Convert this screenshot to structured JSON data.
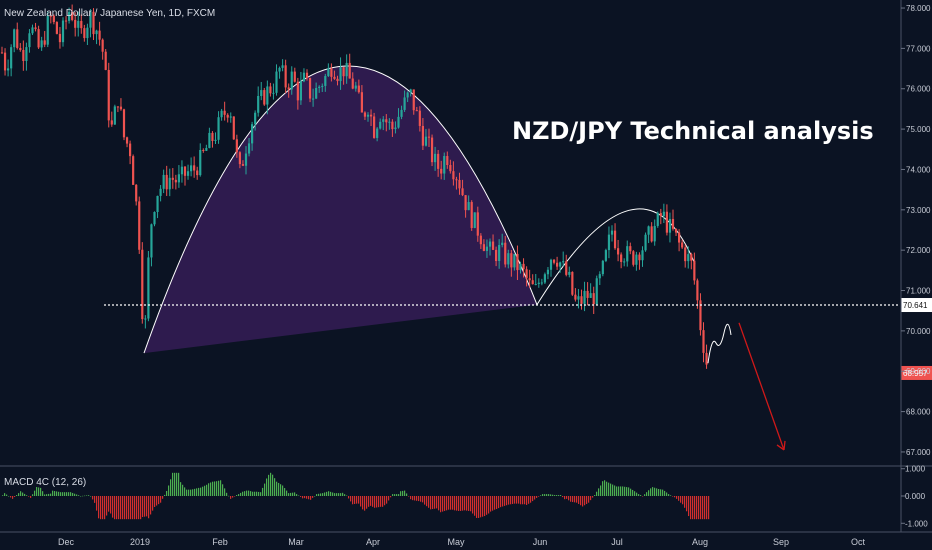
{
  "chart_data": {
    "type": "candlestick",
    "symbol_title": "New Zealand Dollar / Japanese Yen, 1D, FXCM",
    "headline": "NZD/JPY Technical analysis",
    "indicator_label": "MACD 4C (12, 26)",
    "price_axis": {
      "ticks": [
        "78.000",
        "77.000",
        "76.000",
        "75.000",
        "74.000",
        "73.000",
        "72.000",
        "71.000",
        "70.000",
        "69.000",
        "68.000",
        "67.000"
      ],
      "tick_values": [
        78,
        77,
        76,
        75,
        74,
        73,
        72,
        71,
        70,
        69,
        68,
        67
      ],
      "ylim": [
        66.85,
        78.1
      ]
    },
    "macd_axis": {
      "ticks": [
        "1.000",
        "0.000",
        "-1.000"
      ],
      "tick_values": [
        1,
        0,
        -1
      ],
      "ylim": [
        -1.1,
        1.1
      ]
    },
    "time_axis": [
      "Dec",
      "2019",
      "Feb",
      "Mar",
      "Apr",
      "May",
      "Jun",
      "Jul",
      "Aug",
      "Sep",
      "Oct"
    ],
    "support_level": {
      "value": 70.641,
      "label": "70.641"
    },
    "last_price": {
      "value": 68.957,
      "label": "68.957"
    },
    "annotations": {
      "large_arc": {
        "from": 69.45,
        "peak": 76.55,
        "to": 70.65
      },
      "small_arc": {
        "from": 70.65,
        "peak": 73.0,
        "to": 72.1
      },
      "projection": "downward arrow toward 67.000"
    },
    "colors": {
      "background": "#0b1323",
      "bull": "#26a69a",
      "bear": "#ef5350",
      "arc_fill": "#3b1f5e",
      "support_line": "#ffffff",
      "arrow": "#d01919",
      "macd_pos": "#4caf50",
      "macd_neg": "#d32f2f"
    },
    "series_shape": [
      [
        0,
        77.1
      ],
      [
        6,
        76.5
      ],
      [
        14,
        77.4
      ],
      [
        22,
        76.8
      ],
      [
        30,
        77.6
      ],
      [
        40,
        76.9
      ],
      [
        50,
        77.8
      ],
      [
        60,
        77.2
      ],
      [
        70,
        78.0
      ],
      [
        80,
        77.3
      ],
      [
        90,
        77.8
      ],
      [
        98,
        77.4
      ],
      [
        104,
        76.8
      ],
      [
        108,
        75.5
      ],
      [
        112,
        75.0
      ],
      [
        118,
        75.8
      ],
      [
        124,
        74.8
      ],
      [
        130,
        74.5
      ],
      [
        136,
        73.2
      ],
      [
        140,
        72.0
      ],
      [
        144,
        69.5
      ],
      [
        150,
        72.5
      ],
      [
        156,
        73.4
      ],
      [
        162,
        73.6
      ],
      [
        170,
        73.8
      ],
      [
        178,
        73.7
      ],
      [
        186,
        73.9
      ],
      [
        194,
        74.0
      ],
      [
        200,
        74.2
      ],
      [
        208,
        74.6
      ],
      [
        216,
        74.9
      ],
      [
        222,
        75.3
      ],
      [
        230,
        75.6
      ],
      [
        236,
        74.4
      ],
      [
        240,
        73.9
      ],
      [
        246,
        74.6
      ],
      [
        252,
        75.2
      ],
      [
        258,
        75.6
      ],
      [
        266,
        75.9
      ],
      [
        274,
        76.1
      ],
      [
        280,
        76.5
      ],
      [
        286,
        76.1
      ],
      [
        292,
        76.3
      ],
      [
        298,
        75.9
      ],
      [
        304,
        76.2
      ],
      [
        312,
        75.8
      ],
      [
        320,
        76.1
      ],
      [
        326,
        76.3
      ],
      [
        332,
        76.6
      ],
      [
        338,
        76.4
      ],
      [
        344,
        76.5
      ],
      [
        350,
        76.2
      ],
      [
        356,
        76.0
      ],
      [
        362,
        75.3
      ],
      [
        368,
        75.6
      ],
      [
        374,
        75.0
      ],
      [
        380,
        75.4
      ],
      [
        386,
        75.2
      ],
      [
        392,
        75.0
      ],
      [
        398,
        75.3
      ],
      [
        404,
        75.6
      ],
      [
        410,
        75.9
      ],
      [
        416,
        75.4
      ],
      [
        422,
        74.9
      ],
      [
        428,
        74.6
      ],
      [
        434,
        74.2
      ],
      [
        440,
        74.0
      ],
      [
        446,
        74.4
      ],
      [
        452,
        74.1
      ],
      [
        458,
        73.8
      ],
      [
        464,
        73.3
      ],
      [
        470,
        72.9
      ],
      [
        476,
        72.6
      ],
      [
        482,
        72.3
      ],
      [
        488,
        72.0
      ],
      [
        494,
        71.9
      ],
      [
        500,
        72.0
      ],
      [
        506,
        71.8
      ],
      [
        512,
        71.7
      ],
      [
        518,
        71.6
      ],
      [
        524,
        71.4
      ],
      [
        530,
        71.1
      ],
      [
        536,
        71.0
      ],
      [
        540,
        71.3
      ],
      [
        546,
        71.6
      ],
      [
        552,
        71.9
      ],
      [
        558,
        71.8
      ],
      [
        564,
        71.5
      ],
      [
        570,
        71.2
      ],
      [
        574,
        70.7
      ],
      [
        580,
        70.7
      ],
      [
        586,
        70.9
      ],
      [
        592,
        70.8
      ],
      [
        598,
        71.1
      ],
      [
        604,
        71.6
      ],
      [
        608,
        72.1
      ],
      [
        612,
        72.5
      ],
      [
        616,
        72.2
      ],
      [
        620,
        72.0
      ],
      [
        626,
        71.9
      ],
      [
        632,
        71.8
      ],
      [
        638,
        72.0
      ],
      [
        644,
        72.1
      ],
      [
        650,
        72.4
      ],
      [
        656,
        72.6
      ],
      [
        662,
        72.9
      ],
      [
        668,
        72.6
      ],
      [
        674,
        72.4
      ],
      [
        680,
        72.1
      ],
      [
        686,
        71.9
      ],
      [
        692,
        71.6
      ],
      [
        696,
        71.0
      ],
      [
        700,
        70.2
      ],
      [
        704,
        69.6
      ],
      [
        708,
        69.0
      ]
    ]
  }
}
